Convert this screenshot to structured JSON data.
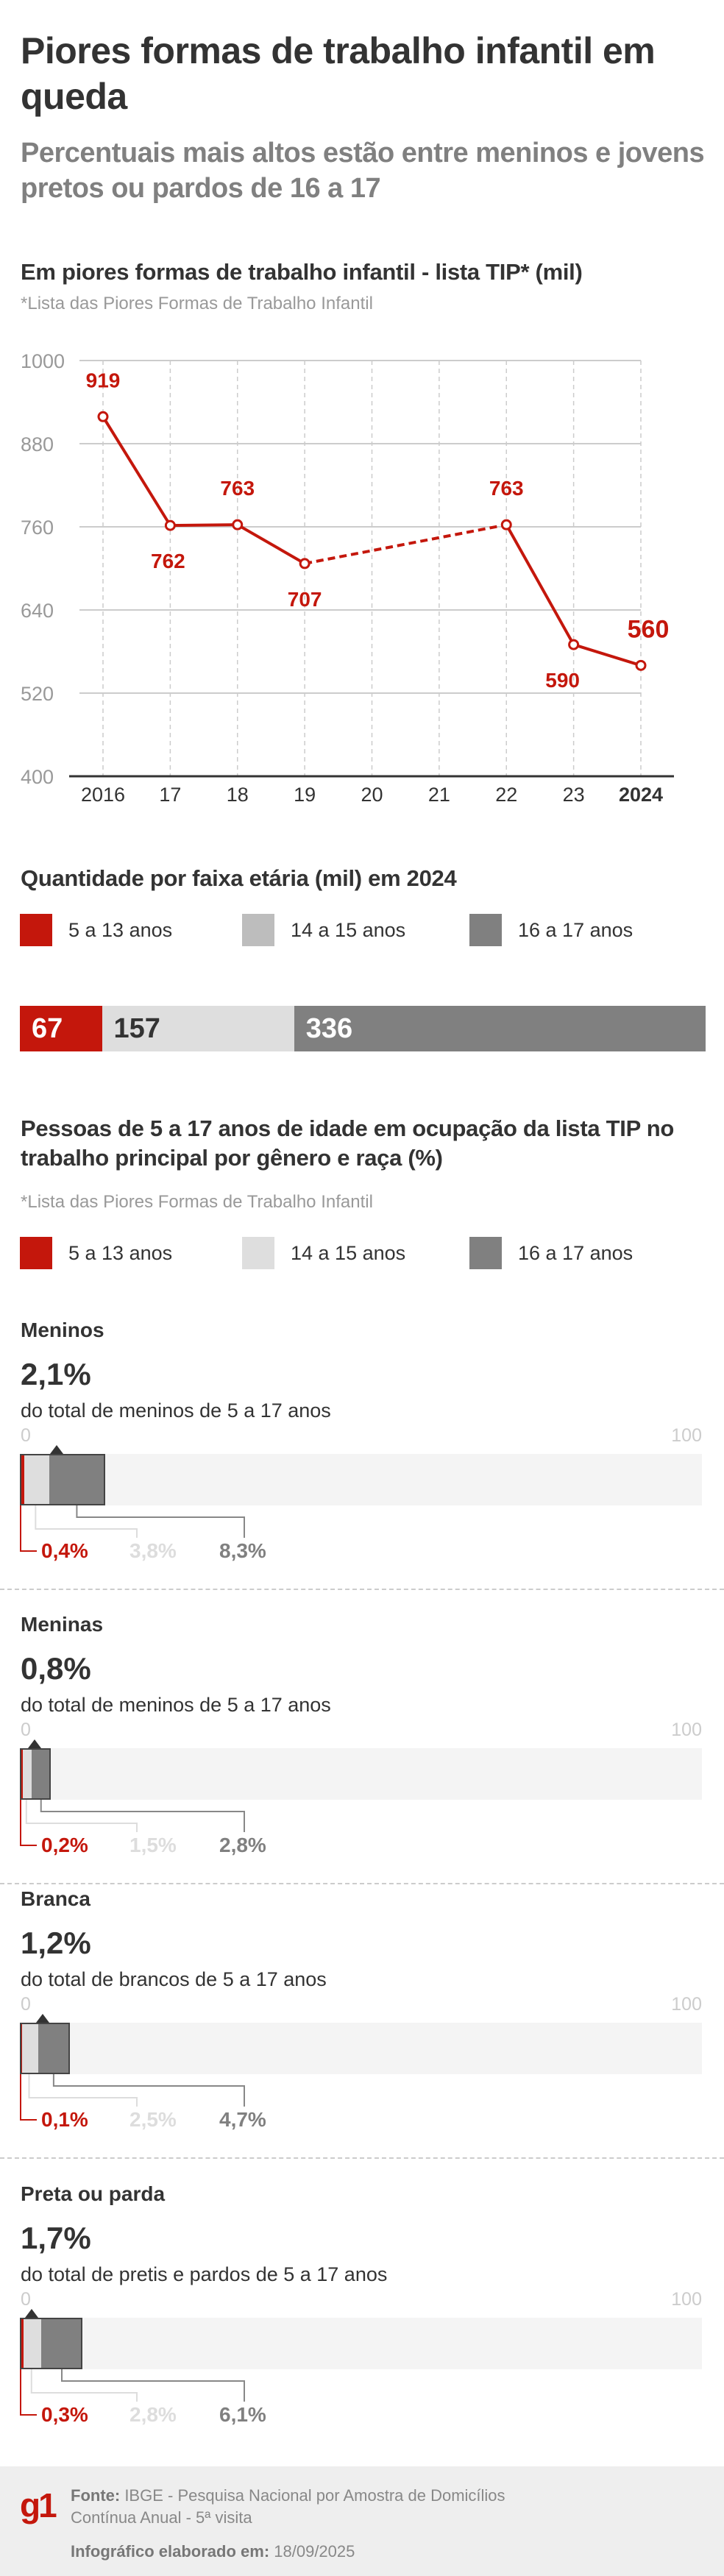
{
  "header": {
    "title": "Piores formas de trabalho infantil em queda",
    "subtitle": "Percentuais mais altos estão entre meninos e jovens pretos ou pardos de 16 a 17"
  },
  "colors": {
    "red": "#c4170c",
    "light": "#bdbdbd",
    "lighter": "#dedede",
    "dark": "#808080",
    "text": "#333333"
  },
  "chart_data": [
    {
      "type": "line",
      "title": "Em piores formas de trabalho infantil - lista TIP* (mil)",
      "note": "*Lista das Piores Formas de Trabalho Infantil",
      "x": [
        "2016",
        "17",
        "18",
        "19",
        "20",
        "21",
        "22",
        "23",
        "2024"
      ],
      "series": [
        {
          "values": [
            919,
            762,
            763,
            707,
            null,
            null,
            763,
            590,
            560
          ],
          "dashed_between": [
            "19",
            "22"
          ]
        }
      ],
      "data_labels": [
        "919",
        "762",
        "763",
        "707",
        "",
        "",
        "763",
        "590",
        "560"
      ],
      "yticks": [
        "1000",
        "880",
        "760",
        "640",
        "520",
        "400"
      ],
      "ylim": [
        400,
        1000
      ],
      "grid": "horizontal solid, vertical dashed"
    },
    {
      "type": "bar",
      "title": "Quantidade por faixa etária (mil) em 2024",
      "stacked": true,
      "categories": [
        "5 a 13 anos",
        "14 a 15 anos",
        "16 a 17 anos"
      ],
      "values": [
        67,
        157,
        336
      ],
      "labels": [
        "67",
        "157",
        "336"
      ]
    },
    {
      "type": "bar",
      "title": "Pessoas de 5 a 17 anos de idade em ocupação da lista TIP no trabalho principal por gênero e raça (%)",
      "note": "*Lista das Piores Formas de Trabalho Infantil",
      "categories": [
        "5 a 13 anos",
        "14 a 15 anos",
        "16 a 17 anos"
      ],
      "scale": [
        "0",
        "100"
      ],
      "xlim": [
        0,
        100
      ],
      "groups": [
        {
          "name": "Meninos",
          "total": "2,1%",
          "desc": "do total de meninos de 5 a 17 anos",
          "values": [
            0.4,
            3.8,
            8.3
          ],
          "labels": [
            "0,4%",
            "3,8%",
            "8,3%"
          ]
        },
        {
          "name": "Meninas",
          "total": "0,8%",
          "desc": "do total de meninos de 5 a 17 anos",
          "values": [
            0.2,
            1.5,
            2.8
          ],
          "labels": [
            "0,2%",
            "1,5%",
            "2,8%"
          ]
        },
        {
          "name": "Branca",
          "total": "1,2%",
          "desc": "do total de brancos de 5 a 17 anos",
          "values": [
            0.1,
            2.5,
            4.7
          ],
          "labels": [
            "0,1%",
            "2,5%",
            "4,7%"
          ]
        },
        {
          "name": "Preta ou parda",
          "total": "1,7%",
          "desc": "do total de pretis e pardos de 5 a 17 anos",
          "values": [
            0.3,
            2.8,
            6.1
          ],
          "labels": [
            "0,3%",
            "2,8%",
            "6,1%"
          ]
        }
      ]
    }
  ],
  "footer": {
    "logo": "g1",
    "source_label": "Fonte:",
    "source_line1": " IBGE - Pesquisa Nacional por Amostra de Domicílios",
    "source_line2": "Contínua Anual - 5ª visita",
    "made_label": "Infográfico elaborado em:",
    "made_date": " 18/09/2025"
  }
}
